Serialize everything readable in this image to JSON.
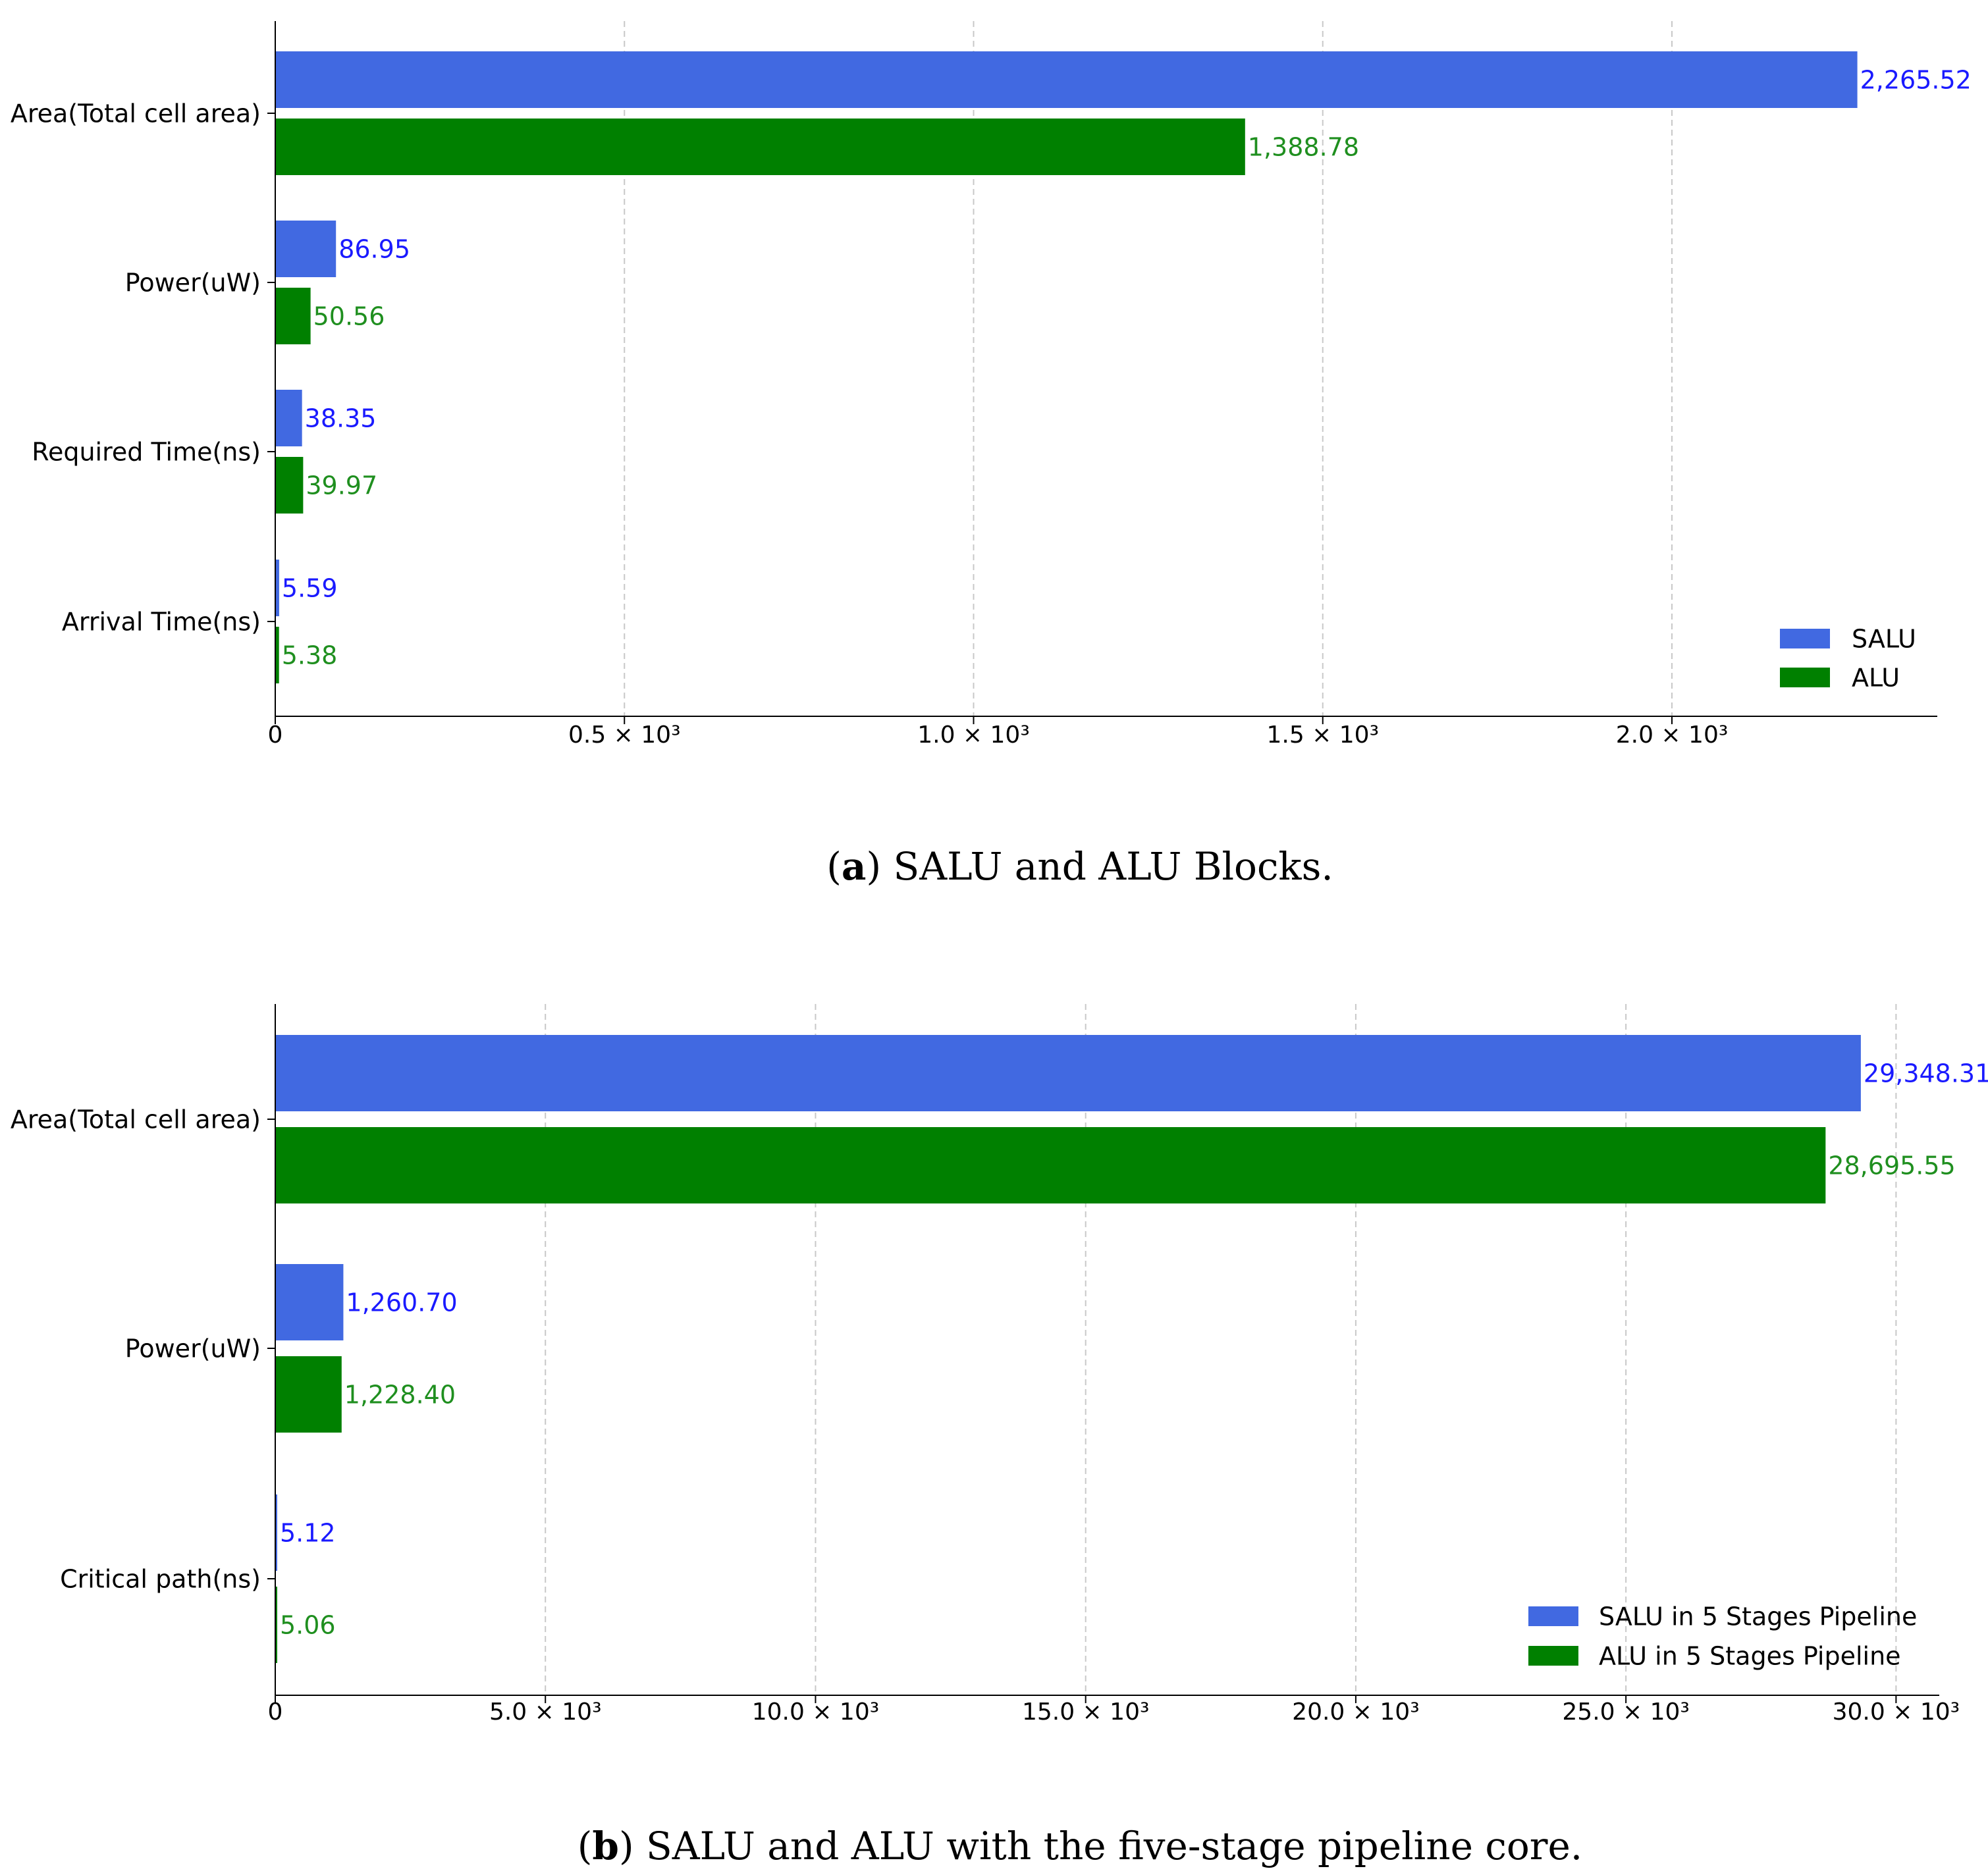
{
  "colors": {
    "salu": "#4169E1",
    "alu": "#008000",
    "salu_label": "#1a1aff",
    "alu_label": "#1f8f1f",
    "axis": "#000000",
    "grid": "#c8c8c8"
  },
  "chart_data": [
    {
      "type": "bar",
      "orientation": "horizontal",
      "categories": [
        "Area(Total cell area)",
        "Power(uW)",
        "Required Time(ns)",
        "Arrival Time(ns)"
      ],
      "series": [
        {
          "name": "SALU",
          "values": [
            2265.52,
            86.95,
            38.35,
            5.59
          ],
          "labels": [
            "2,265.52",
            "86.95",
            "38.35",
            "5.59"
          ]
        },
        {
          "name": "ALU",
          "values": [
            1388.78,
            50.56,
            39.97,
            5.38
          ],
          "labels": [
            "1,388.78",
            "50.56",
            "39.97",
            "5.38"
          ]
        }
      ],
      "xlim": [
        0,
        2380
      ],
      "xticks": [
        0,
        500,
        1000,
        1500,
        2000
      ],
      "xtick_labels": [
        "0",
        "0.5 × 10³",
        "1.0 × 10³",
        "1.5 × 10³",
        "2.0 × 10³"
      ],
      "grid": "x-dashed",
      "legend_position": "bottom-right",
      "caption_tag": "a",
      "caption_text": " SALU and ALU Blocks."
    },
    {
      "type": "bar",
      "orientation": "horizontal",
      "categories": [
        "Area(Total cell area)",
        "Power(uW)",
        "Critical path(ns)"
      ],
      "series": [
        {
          "name": "SALU in 5 Stages Pipeline",
          "values": [
            29348.31,
            1260.7,
            5.12
          ],
          "labels": [
            "29,348.31",
            "1,260.70",
            "5.12"
          ]
        },
        {
          "name": "ALU in 5 Stages Pipeline",
          "values": [
            28695.55,
            1228.4,
            5.06
          ],
          "labels": [
            "28,695.55",
            "1,228.40",
            "5.06"
          ]
        }
      ],
      "xlim": [
        0,
        30800
      ],
      "xticks": [
        0,
        5000,
        10000,
        15000,
        20000,
        25000,
        30000
      ],
      "xtick_labels": [
        "0",
        "5.0 × 10³",
        "10.0 × 10³",
        "15.0 × 10³",
        "20.0 × 10³",
        "25.0 × 10³",
        "30.0 × 10³"
      ],
      "grid": "x-dashed",
      "legend_position": "bottom-right",
      "caption_tag": "b",
      "caption_text": " SALU and ALU with the five-stage pipeline core."
    }
  ]
}
